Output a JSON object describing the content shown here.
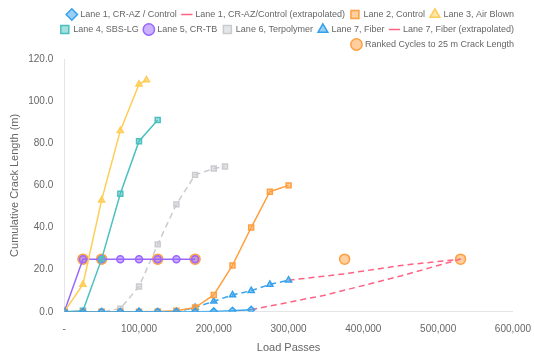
{
  "chart_data": {
    "type": "line",
    "x_label": "Load Passes",
    "y_label": "Cumulative Crack Length (m)",
    "xlim": [
      0,
      600000
    ],
    "ylim": [
      0,
      120
    ],
    "xticks": [
      {
        "value": 0,
        "label": "-"
      },
      {
        "value": 100000,
        "label": "100,000"
      },
      {
        "value": 200000,
        "label": "200,000"
      },
      {
        "value": 300000,
        "label": "300,000"
      },
      {
        "value": 400000,
        "label": "400,000"
      },
      {
        "value": 500000,
        "label": "500,000"
      },
      {
        "value": 600000,
        "label": "600,000"
      }
    ],
    "yticks": [
      {
        "value": 0,
        "label": "0.0"
      },
      {
        "value": 20,
        "label": "20.0"
      },
      {
        "value": 40,
        "label": "40.0"
      },
      {
        "value": 60,
        "label": "60.0"
      },
      {
        "value": 80,
        "label": "80.0"
      },
      {
        "value": 100,
        "label": "100.0"
      },
      {
        "value": 120,
        "label": "120.0"
      }
    ],
    "grid": false,
    "legend": "upper right",
    "series": [
      {
        "name": "Lane 1, CR-AZ / Control",
        "marker": "diamond",
        "line_style": "solid",
        "x": [
          0,
          25000,
          50000,
          75000,
          100000,
          125000,
          150000,
          175000,
          200000,
          225000,
          250000
        ],
        "values": [
          0,
          0,
          0,
          0,
          0,
          0,
          0,
          0,
          0.2,
          0.5,
          1.0
        ]
      },
      {
        "name": "Lane 1, CR-AZ/Control (extrapolated)",
        "marker": "none",
        "line_style": "dashed",
        "x": [
          250000,
          350000,
          450000,
          530000
        ],
        "values": [
          1.0,
          8.0,
          17.0,
          25.0
        ]
      },
      {
        "name": "Lane 2, Control",
        "marker": "square",
        "line_style": "solid",
        "x": [
          0,
          25000,
          50000,
          75000,
          100000,
          125000,
          150000,
          175000,
          200000,
          225000,
          250000,
          275000,
          300000
        ],
        "values": [
          0,
          0,
          0,
          0,
          0,
          0.2,
          0.5,
          2.0,
          8.0,
          22.0,
          40.0,
          57.0,
          60.0
        ]
      },
      {
        "name": "Lane 3, Air Blown",
        "marker": "triangle",
        "line_style": "solid",
        "x": [
          0,
          25000,
          50000,
          75000,
          100000,
          110000
        ],
        "values": [
          0,
          13.0,
          53.0,
          86.0,
          108.0,
          110.0
        ]
      },
      {
        "name": "Lane 4, SBS-LG",
        "marker": "square",
        "line_style": "solid",
        "x": [
          0,
          25000,
          50000,
          75000,
          100000,
          125000
        ],
        "values": [
          0,
          0.5,
          25.0,
          56.0,
          81.0,
          91.0
        ]
      },
      {
        "name": "Lane 5, CR-TB",
        "marker": "circle",
        "line_style": "solid",
        "x": [
          0,
          25000,
          50000,
          75000,
          100000,
          125000,
          150000,
          175000
        ],
        "values": [
          0,
          25.0,
          25.0,
          25.0,
          25.0,
          25.0,
          25.0,
          25.0
        ]
      },
      {
        "name": "Lane 6, Terpolymer",
        "marker": "square",
        "line_style": "dashed",
        "x": [
          0,
          50000,
          75000,
          100000,
          125000,
          150000,
          175000,
          200000,
          215000
        ],
        "values": [
          0,
          0.0,
          1.5,
          12.0,
          32.0,
          51.0,
          65.0,
          68.0,
          69.0
        ]
      },
      {
        "name": "Lane 7, Fiber",
        "marker": "triangle",
        "line_style": "dashed",
        "x": [
          0,
          100000,
          150000,
          175000,
          200000,
          225000,
          250000,
          275000,
          300000
        ],
        "values": [
          0,
          0,
          0,
          2.0,
          5.0,
          8.0,
          10.0,
          13.0,
          15.0
        ]
      },
      {
        "name": "Lane 7, Fiber (extrapolated)",
        "marker": "none",
        "line_style": "dashed",
        "x": [
          300000,
          375000,
          450000,
          530000
        ],
        "values": [
          15.0,
          18.0,
          22.0,
          25.0
        ]
      },
      {
        "name": "Ranked Cycles to 25 m Crack Length",
        "type": "scatter",
        "marker": "circle",
        "x": [
          25000,
          50000,
          125000,
          175000,
          375000,
          530000
        ],
        "values": [
          25.0,
          25.0,
          25.0,
          25.0,
          25.0,
          25.0
        ]
      }
    ]
  }
}
